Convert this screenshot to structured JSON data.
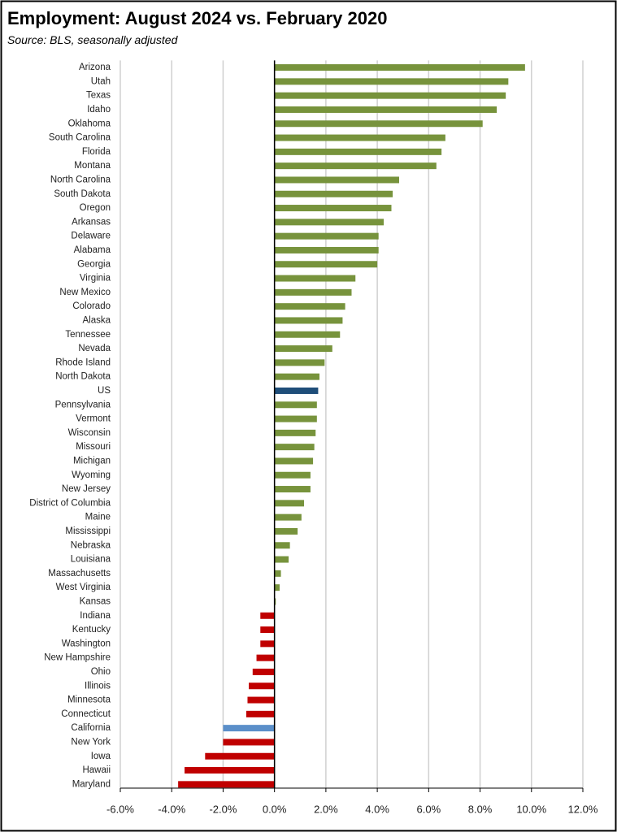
{
  "chart_data": {
    "type": "hbar",
    "title": "Employment:  August 2024 vs. February 2020",
    "subtitle": "Source:  BLS, seasonally adjusted",
    "categories": [
      "Arizona",
      "Utah",
      "Texas",
      "Idaho",
      "Oklahoma",
      "South Carolina",
      "Florida",
      "Montana",
      "North Carolina",
      "South Dakota",
      "Oregon",
      "Arkansas",
      "Delaware",
      "Alabama",
      "Georgia",
      "Virginia",
      "New Mexico",
      "Colorado",
      "Alaska",
      "Tennessee",
      "Nevada",
      "Rhode Island",
      "North Dakota",
      "US",
      "Pennsylvania",
      "Vermont",
      "Wisconsin",
      "Missouri",
      "Michigan",
      "Wyoming",
      "New Jersey",
      "District of Columbia",
      "Maine",
      "Mississippi",
      "Nebraska",
      "Louisiana",
      "Massachusetts",
      "West Virginia",
      "Kansas",
      "Indiana",
      "Kentucky",
      "Washington",
      "New Hampshire",
      "Ohio",
      "Illinois",
      "Minnesota",
      "Connecticut",
      "California",
      "New York",
      "Iowa",
      "Hawaii",
      "Maryland"
    ],
    "values": [
      9.75,
      9.1,
      9.0,
      8.65,
      8.1,
      6.65,
      6.5,
      6.3,
      4.85,
      4.6,
      4.55,
      4.25,
      4.05,
      4.05,
      4.0,
      3.15,
      3.0,
      2.75,
      2.65,
      2.55,
      2.25,
      1.95,
      1.75,
      1.7,
      1.65,
      1.65,
      1.6,
      1.55,
      1.5,
      1.4,
      1.4,
      1.15,
      1.05,
      0.9,
      0.6,
      0.55,
      0.25,
      0.2,
      0.05,
      -0.55,
      -0.55,
      -0.55,
      -0.7,
      -0.85,
      -1.0,
      -1.05,
      -1.1,
      -2.0,
      -2.0,
      -2.7,
      -3.5,
      -3.75
    ],
    "colors": [
      "#77933c",
      "#77933c",
      "#77933c",
      "#77933c",
      "#77933c",
      "#77933c",
      "#77933c",
      "#77933c",
      "#77933c",
      "#77933c",
      "#77933c",
      "#77933c",
      "#77933c",
      "#77933c",
      "#77933c",
      "#77933c",
      "#77933c",
      "#77933c",
      "#77933c",
      "#77933c",
      "#77933c",
      "#77933c",
      "#77933c",
      "#1f4e79",
      "#77933c",
      "#77933c",
      "#77933c",
      "#77933c",
      "#77933c",
      "#77933c",
      "#77933c",
      "#77933c",
      "#77933c",
      "#77933c",
      "#77933c",
      "#77933c",
      "#77933c",
      "#77933c",
      "#77933c",
      "#c00000",
      "#c00000",
      "#c00000",
      "#c00000",
      "#c00000",
      "#c00000",
      "#c00000",
      "#c00000",
      "#5b8fc9",
      "#c00000",
      "#c00000",
      "#c00000",
      "#c00000"
    ],
    "xlim": [
      -6,
      12
    ],
    "xticks": [
      {
        "value": -6,
        "label": "-6.0%"
      },
      {
        "value": -4,
        "label": "-4.0%"
      },
      {
        "value": -2,
        "label": "-2.0%"
      },
      {
        "value": 0,
        "label": "0.0%"
      },
      {
        "value": 2,
        "label": "2.0%"
      },
      {
        "value": 4,
        "label": "4.0%"
      },
      {
        "value": 6,
        "label": "6.0%"
      },
      {
        "value": 8,
        "label": "8.0%"
      },
      {
        "value": 10,
        "label": "10.0%"
      },
      {
        "value": 12,
        "label": "12.0%"
      }
    ],
    "grid": true
  }
}
